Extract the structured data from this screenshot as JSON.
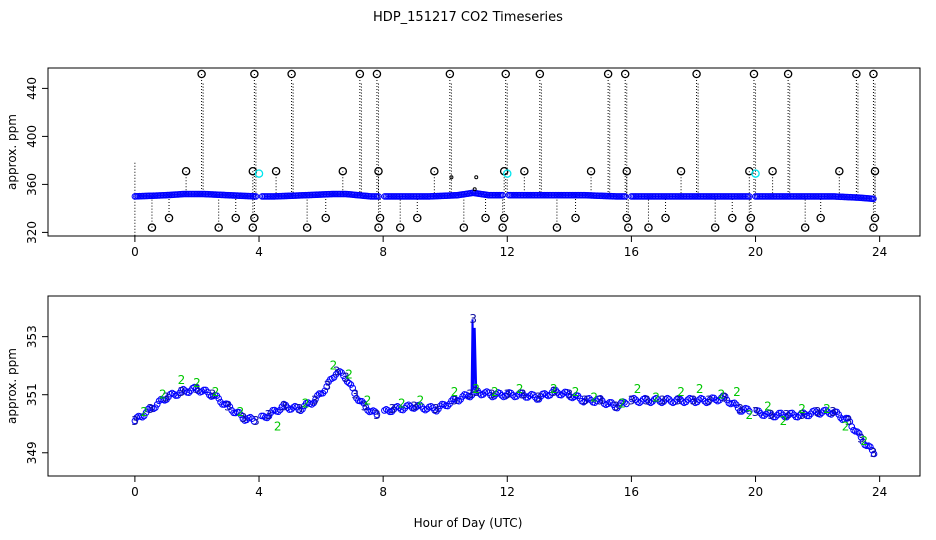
{
  "colors": {
    "black": "#000000",
    "blue": "#0000ff",
    "cyan": "#00e5ee",
    "green": "#00c800",
    "navy": "#1010a0"
  },
  "chart_data": [
    {
      "type": "scatter",
      "title": "HDP_151217  CO2 Timeseries",
      "xlabel": "",
      "ylabel": "approx. ppm",
      "xlim": [
        -2.8,
        25.3
      ],
      "ylim": [
        317,
        457
      ],
      "xticks": [
        0,
        4,
        8,
        12,
        16,
        20,
        24
      ],
      "yticks": [
        320,
        360,
        400,
        440
      ],
      "baseline": {
        "description_series": "main CO2 series (blue circles)",
        "x": [
          0.0,
          1.0,
          1.6,
          2.2,
          3.0,
          3.9,
          4.5,
          5.5,
          6.4,
          6.8,
          7.6,
          8.5,
          9.5,
          10.4,
          10.9,
          11.4,
          12.5,
          13.5,
          14.5,
          15.5,
          16.5,
          17.5,
          18.5,
          19.5,
          20.5,
          21.5,
          22.5,
          23.3,
          23.8
        ],
        "y": [
          350,
          351,
          352,
          352,
          351,
          350,
          350,
          351,
          352,
          352,
          350,
          350,
          350,
          351,
          353,
          351,
          351,
          351,
          351,
          350,
          350,
          350,
          350,
          350,
          350,
          350,
          350,
          349,
          348
        ]
      },
      "spikes": {
        "x": [
          2.15,
          3.85,
          5.05,
          7.25,
          7.8,
          10.15,
          11.95,
          13.05,
          15.25,
          15.8,
          18.1,
          19.95,
          21.05,
          23.25,
          23.8
        ],
        "y": [
          452,
          452,
          452,
          452,
          452,
          452,
          452,
          452,
          452,
          452,
          452,
          452,
          452,
          452,
          452
        ]
      },
      "lows": {
        "x": [
          0.55,
          1.1,
          2.7,
          3.25,
          3.8,
          3.85,
          5.55,
          6.15,
          7.85,
          7.9,
          8.55,
          9.1,
          10.6,
          11.3,
          11.85,
          11.9,
          13.6,
          14.2,
          15.9,
          15.85,
          16.55,
          17.1,
          18.7,
          19.25,
          19.8,
          19.85,
          21.6,
          22.1,
          23.8,
          23.85
        ],
        "y": [
          324,
          332,
          324,
          332,
          324,
          332,
          324,
          332,
          324,
          332,
          324,
          332,
          324,
          332,
          324,
          332,
          324,
          332,
          324,
          332,
          324,
          332,
          324,
          332,
          324,
          332,
          324,
          332,
          324,
          332
        ]
      },
      "mids": {
        "x": [
          1.65,
          3.8,
          4.55,
          6.7,
          7.85,
          9.65,
          11.9,
          12.55,
          14.7,
          15.85,
          17.6,
          19.8,
          20.55,
          22.7,
          23.85
        ],
        "y": [
          371,
          371,
          371,
          371,
          371,
          371,
          371,
          371,
          371,
          371,
          371,
          371,
          371,
          371,
          371
        ]
      },
      "cyan_points": {
        "x": [
          4.0,
          12.0,
          20.0
        ],
        "y": [
          369,
          369,
          369
        ]
      },
      "small_bumps": {
        "x": [
          10.95,
          10.2,
          11.0
        ],
        "y": [
          356,
          366,
          366
        ]
      }
    },
    {
      "type": "scatter",
      "title": "",
      "xlabel": "Hour of Day (UTC)",
      "ylabel": "approx. ppm",
      "xlim": [
        -2.8,
        25.3
      ],
      "ylim": [
        348.2,
        354.4
      ],
      "xticks": [
        0,
        4,
        8,
        12,
        16,
        20,
        24
      ],
      "yticks": [
        349,
        351,
        353
      ],
      "series": [
        {
          "name": "3",
          "color": "navy",
          "x": [
            0.0,
            0.5,
            1.0,
            1.5,
            2.0,
            2.5,
            3.0,
            3.5,
            3.9,
            4.3,
            4.8,
            5.3,
            5.8,
            6.2,
            6.5,
            6.8,
            7.1,
            7.4,
            7.8,
            8.3,
            9.0,
            9.7,
            10.3,
            10.8,
            10.9,
            11.0,
            11.5,
            12.0,
            12.5,
            13.0,
            13.5,
            14.0,
            14.5,
            15.0,
            15.5,
            16.0,
            16.5,
            17.0,
            17.5,
            18.0,
            18.5,
            19.0,
            19.5,
            20.0,
            20.5,
            21.0,
            21.5,
            22.0,
            22.5,
            23.0,
            23.4,
            23.8
          ],
          "y": [
            350.1,
            350.5,
            350.9,
            351.1,
            351.2,
            351.0,
            350.6,
            350.2,
            350.1,
            350.3,
            350.6,
            350.5,
            350.8,
            351.3,
            351.8,
            351.6,
            351.0,
            350.6,
            350.3,
            350.5,
            350.6,
            350.5,
            350.8,
            351.0,
            353.6,
            351.1,
            351.0,
            351.0,
            351.0,
            350.9,
            351.1,
            351.0,
            350.8,
            350.8,
            350.6,
            350.8,
            350.8,
            350.8,
            350.8,
            350.8,
            350.8,
            350.9,
            350.5,
            350.4,
            350.3,
            350.3,
            350.3,
            350.4,
            350.4,
            350.1,
            349.5,
            349.0
          ]
        },
        {
          "name": "2",
          "color": "green",
          "x": [
            0.3,
            0.9,
            1.5,
            2.0,
            2.6,
            3.4,
            4.6,
            5.5,
            6.4,
            6.9,
            7.5,
            8.6,
            9.2,
            10.3,
            11.0,
            11.6,
            12.4,
            13.5,
            14.2,
            14.8,
            15.7,
            16.2,
            16.8,
            17.6,
            18.2,
            18.9,
            19.4,
            19.8,
            20.4,
            20.9,
            21.5,
            22.3,
            22.9,
            23.5
          ],
          "y": [
            350.4,
            351.0,
            351.5,
            351.4,
            351.1,
            350.4,
            349.9,
            350.7,
            352.0,
            351.7,
            350.8,
            350.7,
            350.8,
            351.1,
            351.2,
            351.1,
            351.2,
            351.2,
            351.1,
            350.9,
            350.7,
            351.2,
            350.9,
            351.1,
            351.2,
            351.0,
            351.1,
            350.3,
            350.6,
            350.1,
            350.5,
            350.5,
            349.9,
            349.4
          ]
        }
      ]
    }
  ]
}
